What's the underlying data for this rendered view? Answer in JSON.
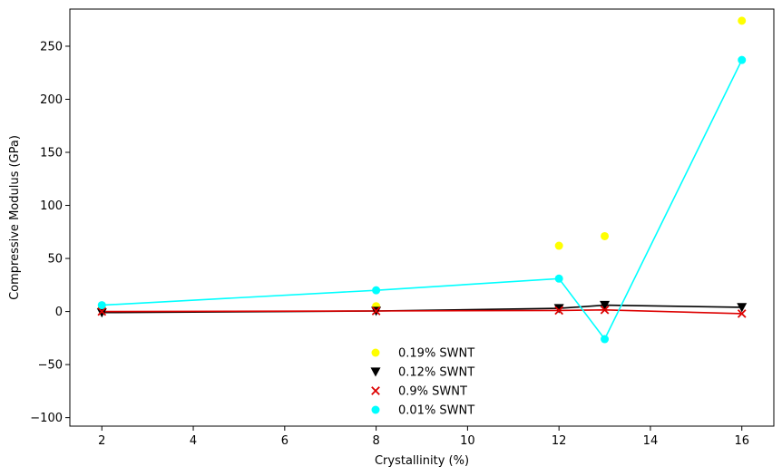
{
  "chart_data": {
    "type": "scatter",
    "title": "",
    "xlabel": "Crystallinity (%)",
    "ylabel": "Compressive Modulus (GPa)",
    "xlim": [
      1.3,
      16.7
    ],
    "ylim": [
      -108,
      285
    ],
    "xticks": [
      2,
      4,
      6,
      8,
      10,
      12,
      14,
      16
    ],
    "yticks": [
      -100,
      -50,
      0,
      50,
      100,
      150,
      200,
      250
    ],
    "grid": false,
    "legend_position": "lower center",
    "series": [
      {
        "name": "0.19% SWNT",
        "marker": "circle",
        "color": "#ffff00",
        "line": false,
        "x": [
          2,
          8,
          12,
          13,
          16
        ],
        "y": [
          3,
          5,
          62,
          71,
          274
        ]
      },
      {
        "name": "0.12% SWNT",
        "marker": "triangle-down",
        "color": "#000000",
        "line": true,
        "x": [
          2,
          8,
          12,
          13,
          16
        ],
        "y": [
          -1,
          0.5,
          3,
          6,
          4
        ]
      },
      {
        "name": "0.9% SWNT",
        "marker": "x",
        "color": "#dd0000",
        "line": true,
        "x": [
          2,
          8,
          12,
          13,
          16
        ],
        "y": [
          0,
          0.5,
          1,
          1.5,
          -2
        ]
      },
      {
        "name": "0.01% SWNT",
        "marker": "circle",
        "color": "#00ffff",
        "line": true,
        "x": [
          2,
          8,
          12,
          13,
          16
        ],
        "y": [
          6,
          20,
          31,
          -26,
          237
        ]
      }
    ]
  }
}
